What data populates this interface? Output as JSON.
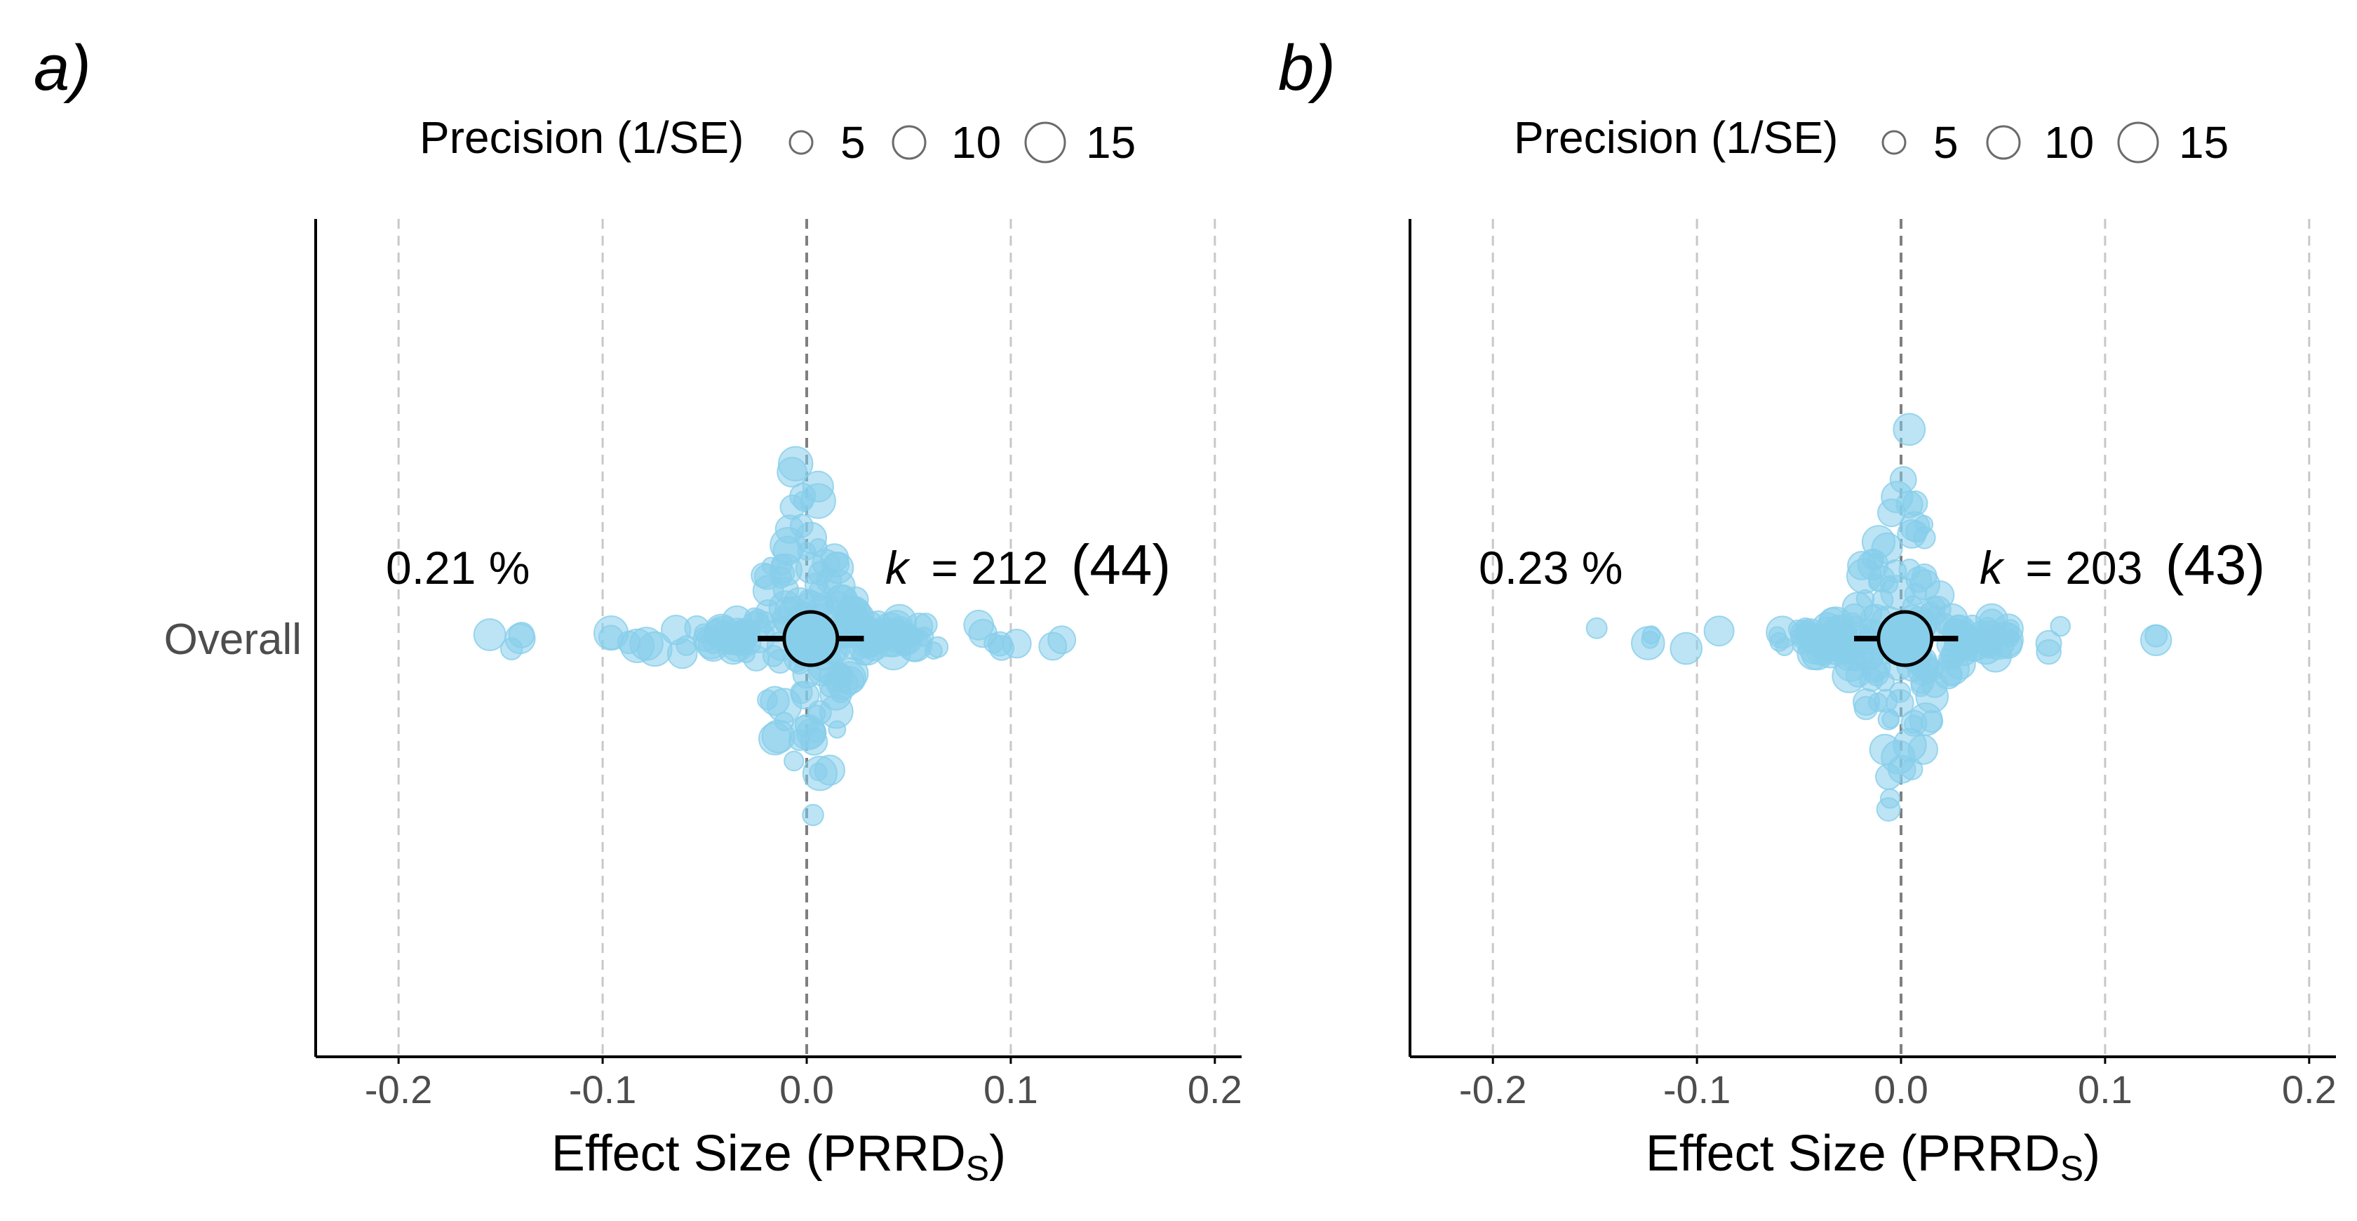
{
  "legend": {
    "title": "Precision (1/SE)",
    "sizes": [
      5,
      10,
      15
    ],
    "labels": [
      "5",
      "10",
      "15"
    ]
  },
  "colors": {
    "point": "#87CEEB",
    "estimate": "#87CEEB",
    "zero_line": "#7f7f7f",
    "grid": "#c8c8c8",
    "axis": "#000000"
  },
  "chart_data": [
    {
      "type": "scatter",
      "panel_label": "a)",
      "ylabel_category": "Overall",
      "xlabel": "Effect Size (PRRD",
      "xlabel_sub": "S",
      "xlabel_close": ")",
      "xlim": [
        -0.22,
        0.22
      ],
      "xticks": [
        -0.2,
        -0.1,
        0.0,
        0.1,
        0.2
      ],
      "xtick_labels": [
        "-0.2",
        "-0.1",
        "0.0",
        "0.1",
        "0.2"
      ],
      "grid": "vertical dashed at ticks",
      "annotation_left": "0.21 %",
      "k_label": "k",
      "k_value": "= 212",
      "k_group": "(44)",
      "estimate": {
        "mean": 0.002,
        "ci": [
          -0.024,
          0.028
        ]
      },
      "n_points": 212,
      "seed": 7
    },
    {
      "type": "scatter",
      "panel_label": "b)",
      "ylabel_category": "",
      "xlabel": "Effect Size (PRRD",
      "xlabel_sub": "S",
      "xlabel_close": ")",
      "xlim": [
        -0.22,
        0.22
      ],
      "xticks": [
        -0.2,
        -0.1,
        0.0,
        0.1,
        0.2
      ],
      "xtick_labels": [
        "-0.2",
        "-0.1",
        "0.0",
        "0.1",
        "0.2"
      ],
      "grid": "vertical dashed at ticks",
      "annotation_left": "0.23 %",
      "k_label": "k",
      "k_value": "= 203",
      "k_group": "(43)",
      "estimate": {
        "mean": 0.002,
        "ci": [
          -0.023,
          0.028
        ]
      },
      "n_points": 203,
      "seed": 13
    }
  ]
}
